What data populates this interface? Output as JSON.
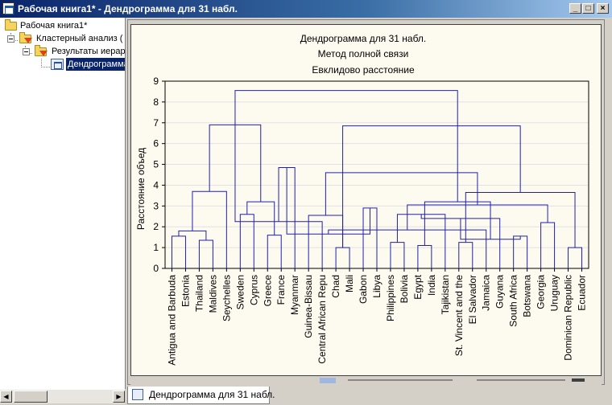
{
  "window": {
    "title": "Рабочая книга1* - Дендрограмма для 31 набл.",
    "buttons": {
      "minimize": "_",
      "maximize": "□",
      "close": "×"
    }
  },
  "tree": {
    "items": [
      {
        "label": "Рабочая книга1*",
        "icon": "folder-open-icon"
      },
      {
        "label": "Кластерный анализ (",
        "icon": "folder-open-icon"
      },
      {
        "label": "Результаты иерар",
        "icon": "folder-open-icon"
      },
      {
        "label": "Дендрограмма",
        "icon": "graph-icon"
      }
    ]
  },
  "tab": {
    "label": "Дендрограмма для 31 набл."
  },
  "chart_data": {
    "type": "dendrogram",
    "title": "Дендрограмма для 31 набл.",
    "subtitle1": "Метод полной связи",
    "subtitle2": "Евклидово расстояние",
    "ylabel": "Расстояние объед",
    "ylim": [
      0,
      9
    ],
    "yticks": [
      0,
      1,
      2,
      3,
      4,
      5,
      6,
      7,
      8,
      9
    ],
    "leaves": [
      "Antigua and Barbuda",
      "Estonia",
      "Thailand",
      "Maldives",
      "Seychelles",
      "Sweden",
      "Cyprus",
      "Greece",
      "France",
      "Myanmar",
      "Guinea-Bissau",
      "Central African Repu",
      "Chad",
      "Mali",
      "Gabon",
      "Libya",
      "Philippines",
      "Bolivia",
      "Egypt",
      "India",
      "Tajikistan",
      "St. Vincent and the",
      "El Salvador",
      "Jamaica",
      "Guyana",
      "South Africa",
      "Botswana",
      "Georgia",
      "Uruguay",
      "Dominican Republic",
      "Ecuador"
    ],
    "merges": [
      [
        0,
        1,
        1.55
      ],
      [
        2,
        3,
        1.35
      ],
      [
        31,
        32,
        1.8
      ],
      [
        33,
        4,
        3.7
      ],
      [
        5,
        6,
        2.6
      ],
      [
        7,
        8,
        1.6
      ],
      [
        35,
        36,
        3.2
      ],
      [
        34,
        37,
        6.9
      ],
      [
        12,
        13,
        1.0
      ],
      [
        11,
        38,
        2.25
      ],
      [
        10,
        39,
        2.55
      ],
      [
        9,
        40,
        4.85
      ],
      [
        14,
        15,
        2.9
      ],
      [
        16,
        17,
        1.25
      ],
      [
        18,
        19,
        1.1
      ],
      [
        42,
        43,
        1.65
      ],
      [
        44,
        20,
        2.6
      ],
      [
        21,
        22,
        1.25
      ],
      [
        46,
        23,
        1.85
      ],
      [
        47,
        24,
        2.4
      ],
      [
        25,
        26,
        1.55
      ],
      [
        27,
        28,
        2.2
      ],
      [
        29,
        30,
        1.0
      ],
      [
        50,
        51,
        1.4
      ],
      [
        49,
        52,
        3.05
      ],
      [
        48,
        53,
        3.65
      ],
      [
        45,
        54,
        3.2
      ],
      [
        41,
        55,
        4.6
      ],
      [
        39,
        56,
        6.85
      ],
      [
        38,
        57,
        8.55
      ]
    ]
  }
}
